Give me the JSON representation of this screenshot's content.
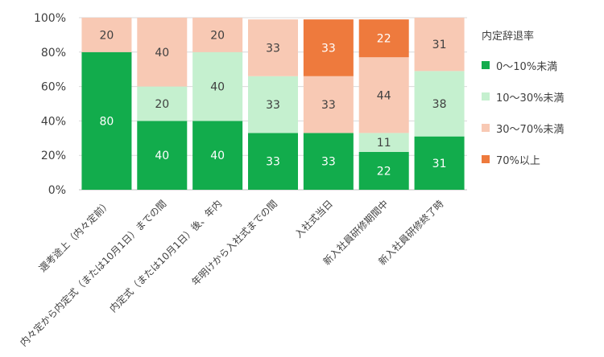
{
  "chart_data": {
    "type": "bar",
    "stacked": true,
    "percent": true,
    "categories": [
      "選考途上（内々定前）",
      "内々定から内定式（または10月1日）までの間",
      "内定式（または10月1日）後、年内",
      "年明けから入社式までの間",
      "入社式当日",
      "新入社員研修期間中",
      "新入社員研修終了時"
    ],
    "series": [
      {
        "name": "0～10%未満",
        "color": "#12ac4c",
        "label_color": "#ffffff",
        "values": [
          80,
          40,
          40,
          33,
          33,
          22,
          31
        ]
      },
      {
        "name": "10～30%未満",
        "color": "#c5f0cf",
        "label_color": "#404040",
        "values": [
          0,
          20,
          40,
          33,
          0,
          11,
          38
        ]
      },
      {
        "name": "30～70%未満",
        "color": "#f8c9b4",
        "label_color": "#404040",
        "values": [
          20,
          40,
          20,
          33,
          33,
          44,
          31
        ]
      },
      {
        "name": "70%以上",
        "color": "#ee7a3d",
        "label_color": "#ffffff",
        "values": [
          0,
          0,
          0,
          0,
          33,
          22,
          0
        ]
      }
    ],
    "ylim": [
      0,
      100
    ],
    "yticks": [
      "0%",
      "20%",
      "40%",
      "60%",
      "80%",
      "100%"
    ],
    "grid": true,
    "legend_title": "内定辞退率",
    "legend_position": "right"
  }
}
